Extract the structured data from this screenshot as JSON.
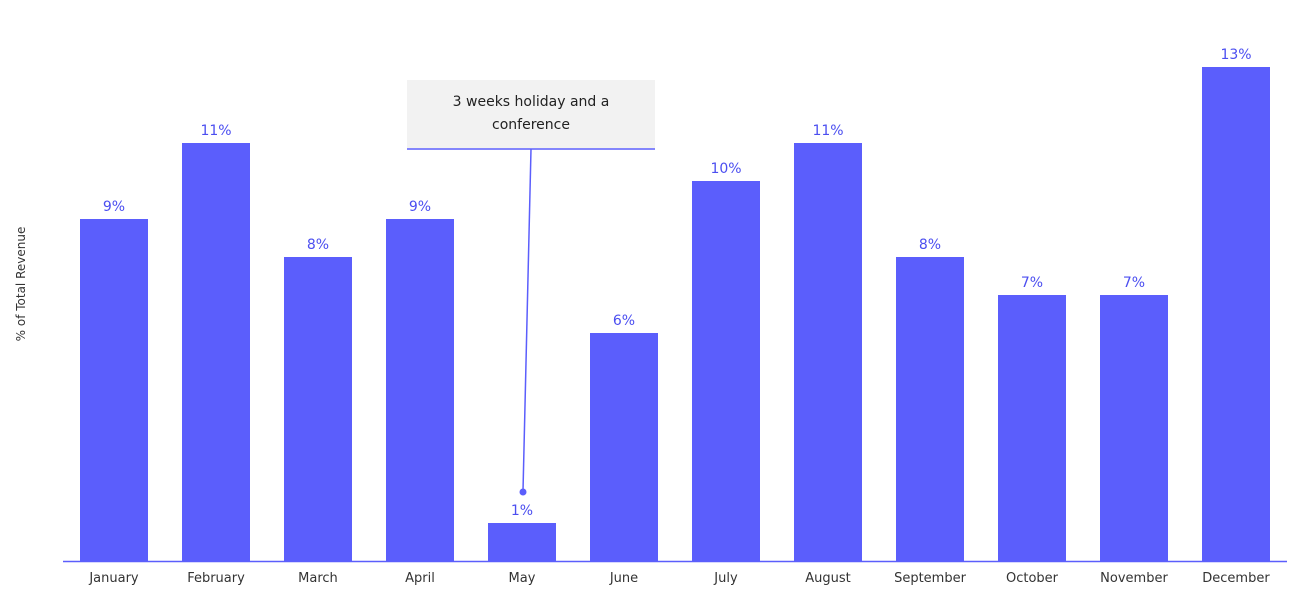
{
  "chart_data": {
    "type": "bar",
    "ylabel": "% of Total Revenue",
    "xlabel": "",
    "categories": [
      "January",
      "February",
      "March",
      "April",
      "May",
      "June",
      "July",
      "August",
      "September",
      "October",
      "November",
      "December"
    ],
    "values": [
      9,
      11,
      8,
      9,
      1,
      6,
      10,
      11,
      8,
      7,
      7,
      13
    ],
    "data_labels": [
      "9%",
      "11%",
      "8%",
      "9%",
      "1%",
      "6%",
      "10%",
      "11%",
      "8%",
      "7%",
      "7%",
      "13%"
    ],
    "ylim": [
      0,
      13.5
    ],
    "grid": false,
    "annotation": {
      "text": "3 weeks holiday and a conference",
      "category": "May"
    },
    "colors": {
      "bar": "#5b5efc",
      "label": "#4b4ef0",
      "axis": "#5b5efc",
      "tick": "#333333",
      "callout_bg": "#f2f2f2"
    }
  }
}
